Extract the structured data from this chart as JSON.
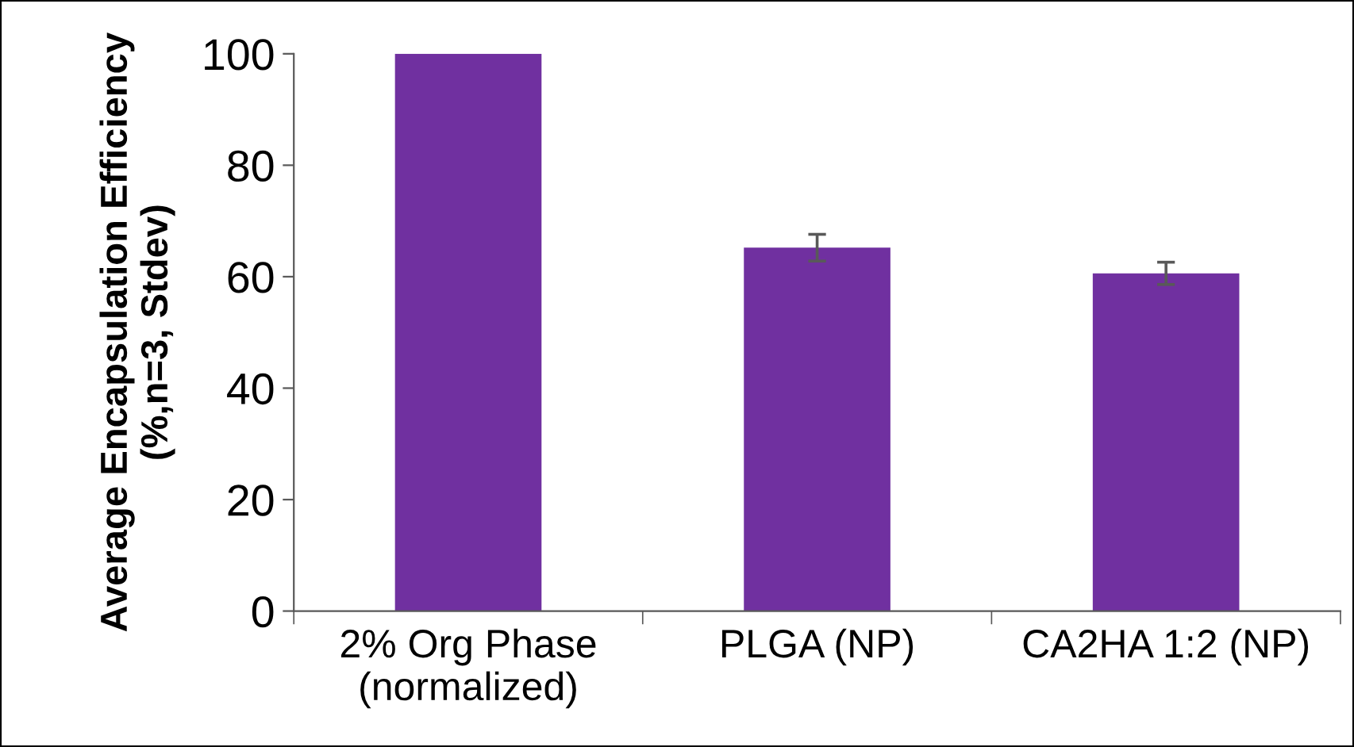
{
  "chart_data": {
    "type": "bar",
    "ylabel": "Average Encapsulation Efficiency\n(%,n=3, Stdev)",
    "categories": [
      "2% Org Phase\n(normalized)",
      "PLGA (NP)",
      "CA2HA 1:2 (NP)"
    ],
    "values": [
      100,
      65.2,
      60.6
    ],
    "errors": [
      null,
      2.4,
      2.0
    ],
    "color": "#7030a0",
    "ylim": [
      0,
      100
    ],
    "yticks": [
      0,
      20,
      40,
      60,
      80,
      100
    ],
    "grid": false,
    "legend": false
  }
}
